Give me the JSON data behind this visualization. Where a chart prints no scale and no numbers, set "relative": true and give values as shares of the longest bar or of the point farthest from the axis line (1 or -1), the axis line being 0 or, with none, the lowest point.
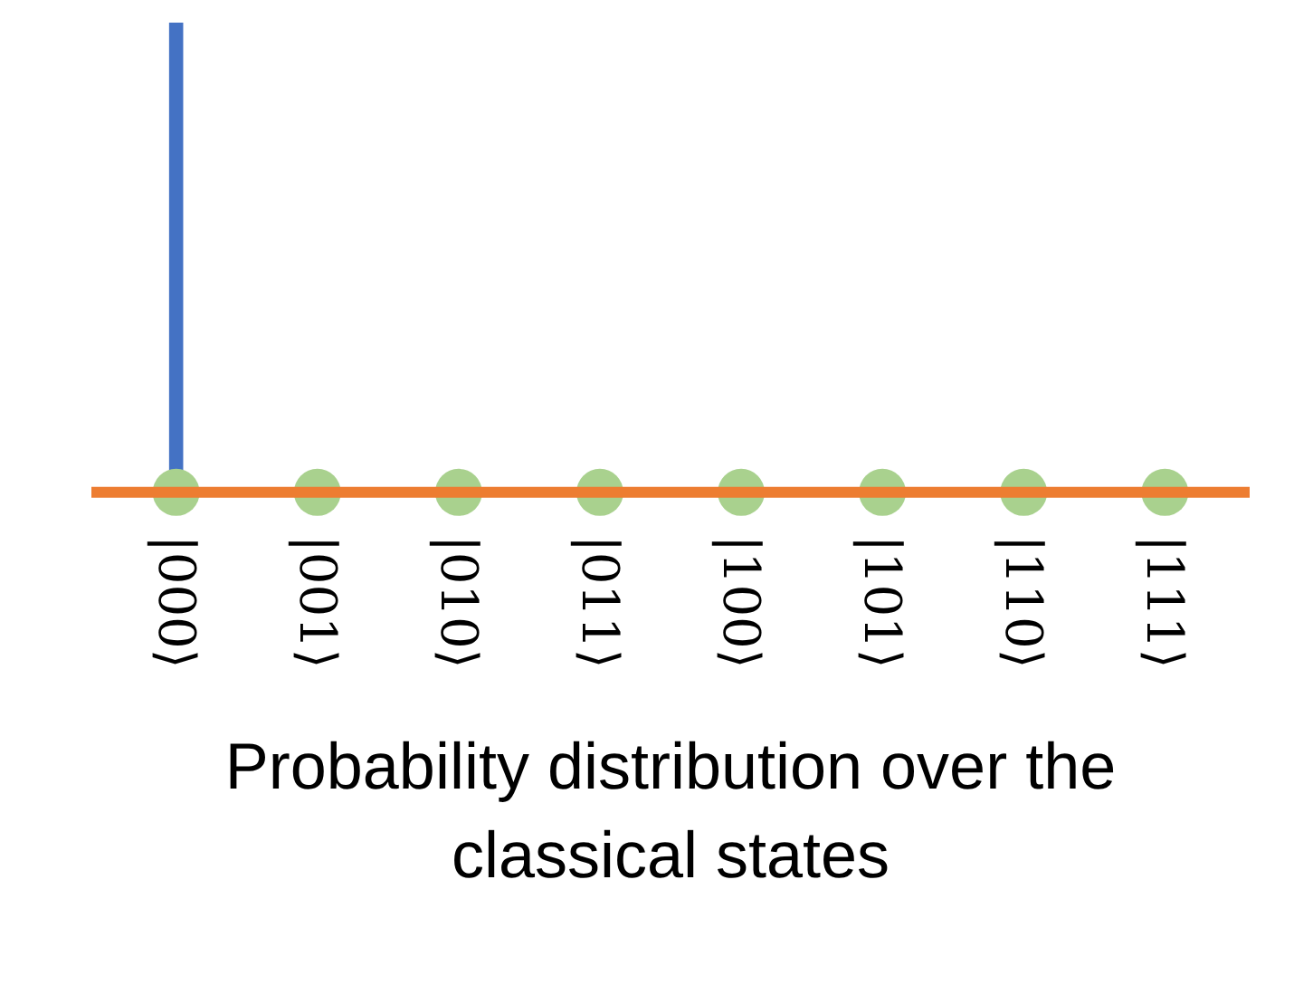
{
  "chart_data": {
    "type": "bar",
    "relative": true,
    "xlabel": "Probability distribution over the classical states",
    "categories": [
      "|000⟩",
      "|001⟩",
      "|010⟩",
      "|011⟩",
      "|100⟩",
      "|101⟩",
      "|110⟩",
      "|111⟩"
    ],
    "series": [
      {
        "color": "#4472c4",
        "values": [
          1,
          0,
          0,
          0,
          0,
          0,
          0,
          0
        ]
      },
      {
        "type": "scatter",
        "color": "#a9d18e",
        "marker": "circle",
        "values": [
          0,
          0,
          0,
          0,
          0,
          0,
          0,
          0
        ]
      }
    ],
    "grid": false
  }
}
